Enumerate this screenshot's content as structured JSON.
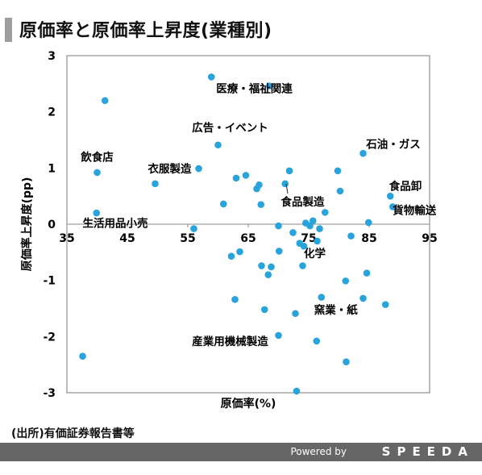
{
  "title": "原価率と原価率上昇度(業種別)",
  "source": "(出所)有価証券報告書等",
  "footer": {
    "powered_by": "Powered by",
    "brand": "SPEEDA"
  },
  "colors": {
    "point": "#29a3dc",
    "title_bar": "#9e9e9e",
    "footer_bg": "#666666"
  },
  "chart_data": {
    "type": "scatter",
    "xlabel": "原価率(%)",
    "ylabel": "原価率上昇度(pp)",
    "xlim": [
      35,
      95
    ],
    "ylim": [
      -3,
      3
    ],
    "x_ticks": [
      35,
      45,
      55,
      65,
      75,
      85,
      95
    ],
    "x_tick_labels": [
      "35",
      "45",
      "55",
      "65",
      "75",
      "85",
      "95"
    ],
    "y_ticks": [
      3,
      2,
      1,
      0,
      -1,
      -2,
      -3
    ],
    "y_tick_labels": [
      "3",
      "2",
      "1",
      "0",
      "-1",
      "-2",
      "-3"
    ],
    "grid": false,
    "points": [
      {
        "x": 41.3,
        "y": 2.2
      },
      {
        "x": 40.0,
        "y": 0.92
      },
      {
        "x": 39.9,
        "y": 0.2
      },
      {
        "x": 37.6,
        "y": -2.35
      },
      {
        "x": 49.6,
        "y": 0.72
      },
      {
        "x": 56.8,
        "y": 0.99
      },
      {
        "x": 56.0,
        "y": -0.08
      },
      {
        "x": 58.9,
        "y": 2.62
      },
      {
        "x": 60.0,
        "y": 1.41
      },
      {
        "x": 60.9,
        "y": 0.36
      },
      {
        "x": 62.2,
        "y": -0.57
      },
      {
        "x": 62.8,
        "y": -1.34
      },
      {
        "x": 63.0,
        "y": 0.82
      },
      {
        "x": 63.6,
        "y": -0.49
      },
      {
        "x": 64.6,
        "y": 0.87
      },
      {
        "x": 66.4,
        "y": 0.63
      },
      {
        "x": 66.8,
        "y": 0.7
      },
      {
        "x": 67.1,
        "y": 0.35
      },
      {
        "x": 67.2,
        "y": -0.74
      },
      {
        "x": 67.7,
        "y": -1.52
      },
      {
        "x": 68.3,
        "y": -0.9
      },
      {
        "x": 68.8,
        "y": -0.76
      },
      {
        "x": 68.5,
        "y": 2.46
      },
      {
        "x": 70.0,
        "y": -0.03
      },
      {
        "x": 70.1,
        "y": -0.48
      },
      {
        "x": 70.0,
        "y": -1.98
      },
      {
        "x": 71.1,
        "y": 0.72
      },
      {
        "x": 71.8,
        "y": 0.95
      },
      {
        "x": 72.4,
        "y": -0.15
      },
      {
        "x": 72.8,
        "y": -1.59
      },
      {
        "x": 73.0,
        "y": -2.97
      },
      {
        "x": 73.5,
        "y": -0.34
      },
      {
        "x": 74.0,
        "y": -0.74
      },
      {
        "x": 74.2,
        "y": -0.39
      },
      {
        "x": 74.5,
        "y": 0.02
      },
      {
        "x": 75.2,
        "y": -0.03
      },
      {
        "x": 75.7,
        "y": 0.06
      },
      {
        "x": 76.4,
        "y": -0.3
      },
      {
        "x": 76.3,
        "y": -2.08
      },
      {
        "x": 76.8,
        "y": -0.08
      },
      {
        "x": 77.1,
        "y": -1.3
      },
      {
        "x": 77.7,
        "y": 0.21
      },
      {
        "x": 79.8,
        "y": 0.95
      },
      {
        "x": 80.2,
        "y": 0.59
      },
      {
        "x": 81.1,
        "y": -1.01
      },
      {
        "x": 81.2,
        "y": -2.45
      },
      {
        "x": 82.0,
        "y": -0.21
      },
      {
        "x": 84.0,
        "y": -1.32
      },
      {
        "x": 84.0,
        "y": 1.26
      },
      {
        "x": 84.6,
        "y": -0.87
      },
      {
        "x": 84.9,
        "y": 0.03
      },
      {
        "x": 87.7,
        "y": -1.43
      },
      {
        "x": 88.5,
        "y": 0.5
      },
      {
        "x": 88.9,
        "y": 0.31
      }
    ],
    "annotations": [
      {
        "text": "医療・福祉関連",
        "x": 66,
        "y": 2.42
      },
      {
        "text": "広告・イベント",
        "x": 62,
        "y": 1.72
      },
      {
        "text": "飲食店",
        "x": 40,
        "y": 1.2
      },
      {
        "text": "衣服製造",
        "x": 52,
        "y": 0.99
      },
      {
        "text": "食品製造",
        "x": 74,
        "y": 0.4
      },
      {
        "text": "生活用品小売",
        "x": 43,
        "y": 0.02
      },
      {
        "text": "石油・ガス",
        "x": 89,
        "y": 1.43
      },
      {
        "text": "食品卸",
        "x": 91,
        "y": 0.68
      },
      {
        "text": "貨物輸送",
        "x": 92.5,
        "y": 0.25
      },
      {
        "text": "化学",
        "x": 76,
        "y": -0.52
      },
      {
        "text": "窯業・紙",
        "x": 79.5,
        "y": -1.52
      },
      {
        "text": "産業用機械製造",
        "x": 62,
        "y": -2.08
      }
    ]
  }
}
